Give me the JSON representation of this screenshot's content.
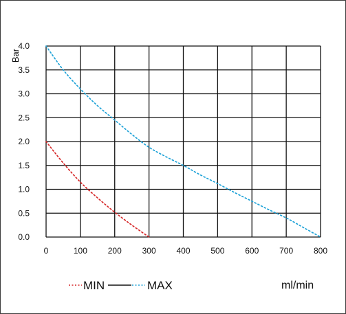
{
  "chart_data": {
    "type": "line",
    "title": "",
    "xlabel": "ml/min",
    "ylabel": "Bar",
    "xlim": [
      0,
      800
    ],
    "ylim": [
      0,
      4.0
    ],
    "x_ticks": [
      "0",
      "100",
      "200",
      "300",
      "400",
      "500",
      "600",
      "700",
      "800"
    ],
    "y_ticks": [
      "0.0",
      "0.5",
      "1.0",
      "1.5",
      "2.0",
      "2.5",
      "3.0",
      "3.5",
      "4.0"
    ],
    "grid": true,
    "legend_position": "bottom-left",
    "series": [
      {
        "name": "MIN",
        "color": "#d62728",
        "style": "dotted",
        "x": [
          0,
          50,
          100,
          150,
          200,
          250,
          300
        ],
        "y": [
          2.0,
          1.55,
          1.15,
          0.82,
          0.52,
          0.25,
          0.0
        ]
      },
      {
        "name": "MAX",
        "color": "#1fa3d8",
        "style": "dotted",
        "x": [
          0,
          50,
          100,
          150,
          200,
          250,
          300,
          350,
          400,
          450,
          500,
          550,
          600,
          650,
          700,
          750,
          800
        ],
        "y": [
          4.0,
          3.5,
          3.1,
          2.75,
          2.45,
          2.15,
          1.88,
          1.68,
          1.5,
          1.3,
          1.12,
          0.93,
          0.75,
          0.57,
          0.4,
          0.2,
          0.0
        ]
      }
    ],
    "legend": {
      "entries": [
        "MIN",
        "MAX"
      ],
      "separator_color": "#111111"
    }
  }
}
